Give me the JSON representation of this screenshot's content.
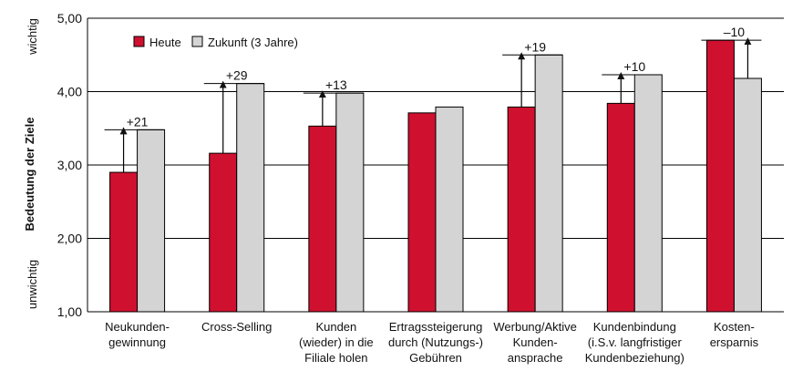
{
  "chart_data": {
    "type": "bar",
    "ylabel": "Bedeutung der Ziele",
    "ylim": [
      1,
      5
    ],
    "yticks": [
      "1,00",
      "2,00",
      "3,00",
      "4,00",
      "5,00"
    ],
    "ytick_values": [
      1,
      2,
      3,
      4,
      5
    ],
    "y_annotation_top": "wichtig",
    "y_annotation_bottom": "unwichtig",
    "grid": true,
    "legend_position": "top-left",
    "categories": [
      [
        "Neukunden-",
        "gewinnung"
      ],
      [
        "Cross-Selling"
      ],
      [
        "Kunden",
        "(wieder) in die",
        "Filiale holen"
      ],
      [
        "Ertragssteigerung",
        "durch (Nutzungs-)",
        "Gebühren"
      ],
      [
        "Werbung/Aktive",
        "Kunden-",
        "ansprache"
      ],
      [
        "Kundenbindung",
        "(i.S.v. langfristiger",
        "Kundenbeziehung)"
      ],
      [
        "Kosten-",
        "ersparnis"
      ]
    ],
    "series": [
      {
        "name": "Heute",
        "color": "#d0102f",
        "values": [
          2.9,
          3.16,
          3.53,
          3.71,
          3.79,
          3.84,
          4.7
        ]
      },
      {
        "name": "Zukunft (3 Jahre)",
        "color": "#d4d4d4",
        "values": [
          3.48,
          4.11,
          3.98,
          3.79,
          4.5,
          4.23,
          4.18
        ]
      }
    ],
    "change_labels": [
      "+21",
      "+29",
      "+13",
      "",
      "+19",
      "+10",
      "–10"
    ]
  }
}
